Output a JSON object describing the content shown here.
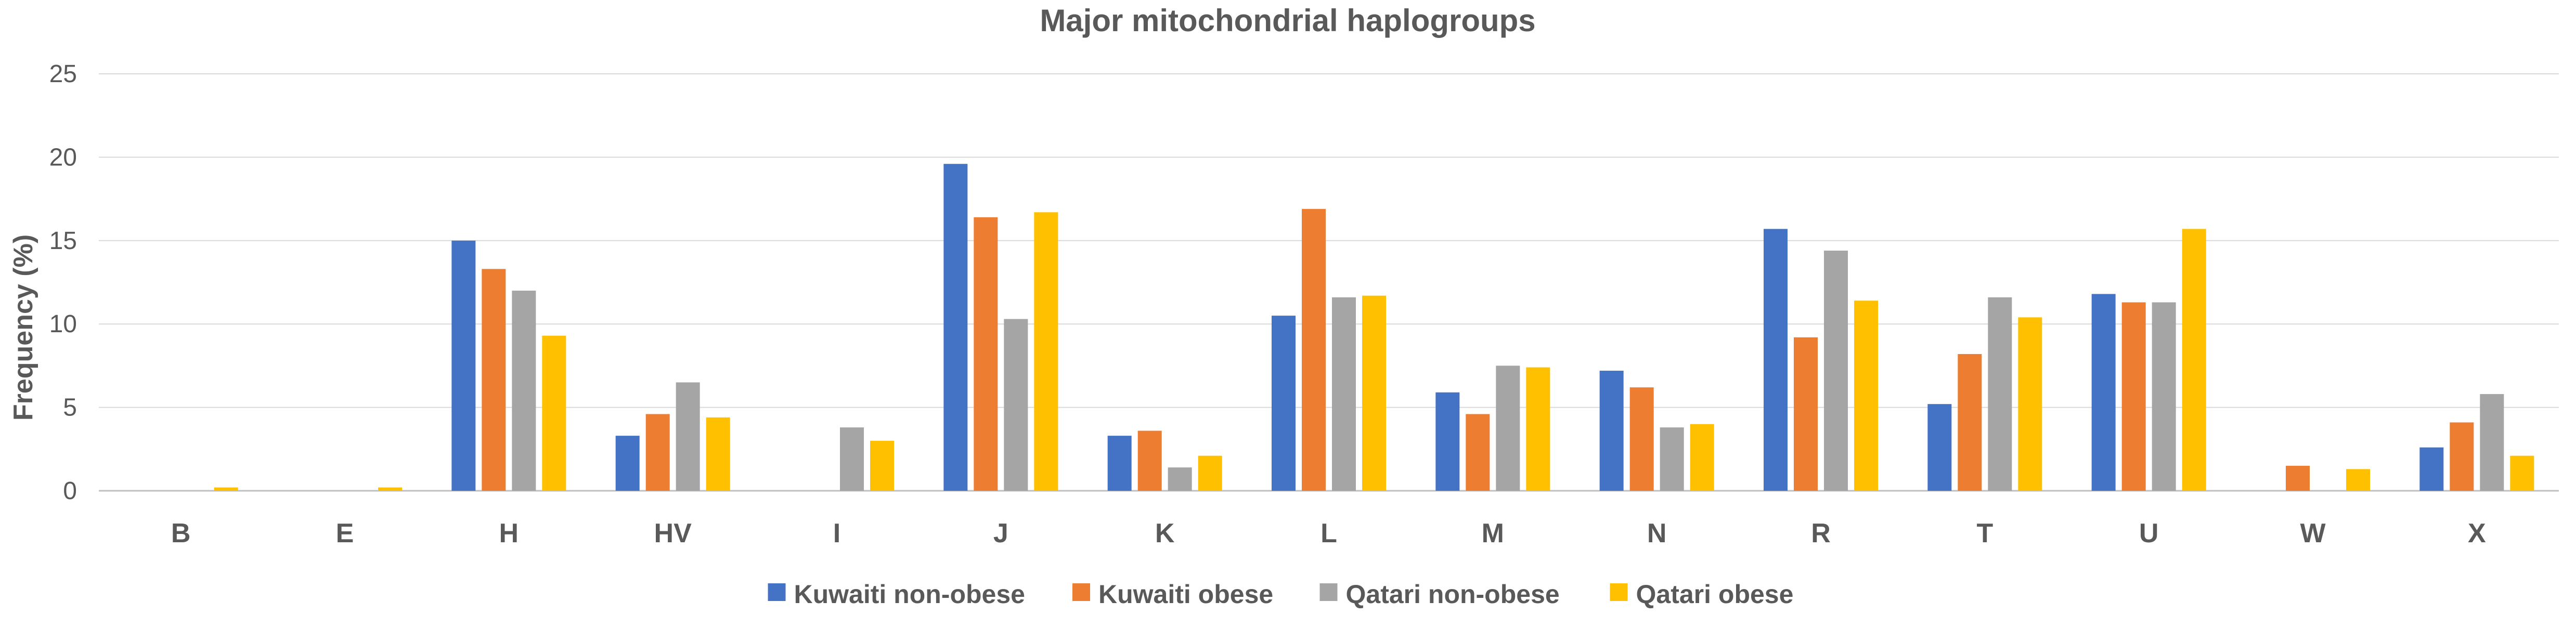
{
  "chart_data": {
    "type": "bar",
    "title": "Major mitochondrial haplogroups",
    "xlabel": "",
    "ylabel": "Frequency (%)",
    "ylim": [
      0,
      25
    ],
    "yticks": [
      0,
      5,
      10,
      15,
      20,
      25
    ],
    "grid": true,
    "legend_position": "bottom",
    "categories": [
      "B",
      "E",
      "H",
      "HV",
      "I",
      "J",
      "K",
      "L",
      "M",
      "N",
      "R",
      "T",
      "U",
      "W",
      "X"
    ],
    "series": [
      {
        "name": "Kuwaiti non-obese",
        "color": "#4472C4",
        "values": [
          0,
          0,
          15.0,
          3.3,
          0,
          19.6,
          3.3,
          10.5,
          5.9,
          7.2,
          15.7,
          5.2,
          11.8,
          0,
          2.6
        ]
      },
      {
        "name": "Kuwaiti obese",
        "color": "#ED7D31",
        "values": [
          0,
          0,
          13.3,
          4.6,
          0,
          16.4,
          3.6,
          16.9,
          4.6,
          6.2,
          9.2,
          8.2,
          11.3,
          1.5,
          4.1
        ]
      },
      {
        "name": "Qatari non-obese",
        "color": "#A5A5A5",
        "values": [
          0,
          0,
          12.0,
          6.5,
          3.8,
          10.3,
          1.4,
          11.6,
          7.5,
          3.8,
          14.4,
          11.6,
          11.3,
          0,
          5.8
        ]
      },
      {
        "name": "Qatari obese",
        "color": "#FFC000",
        "values": [
          0.2,
          0.2,
          9.3,
          4.4,
          3.0,
          16.7,
          2.1,
          11.7,
          7.4,
          4.0,
          11.4,
          10.4,
          15.7,
          1.3,
          2.1
        ]
      }
    ]
  }
}
